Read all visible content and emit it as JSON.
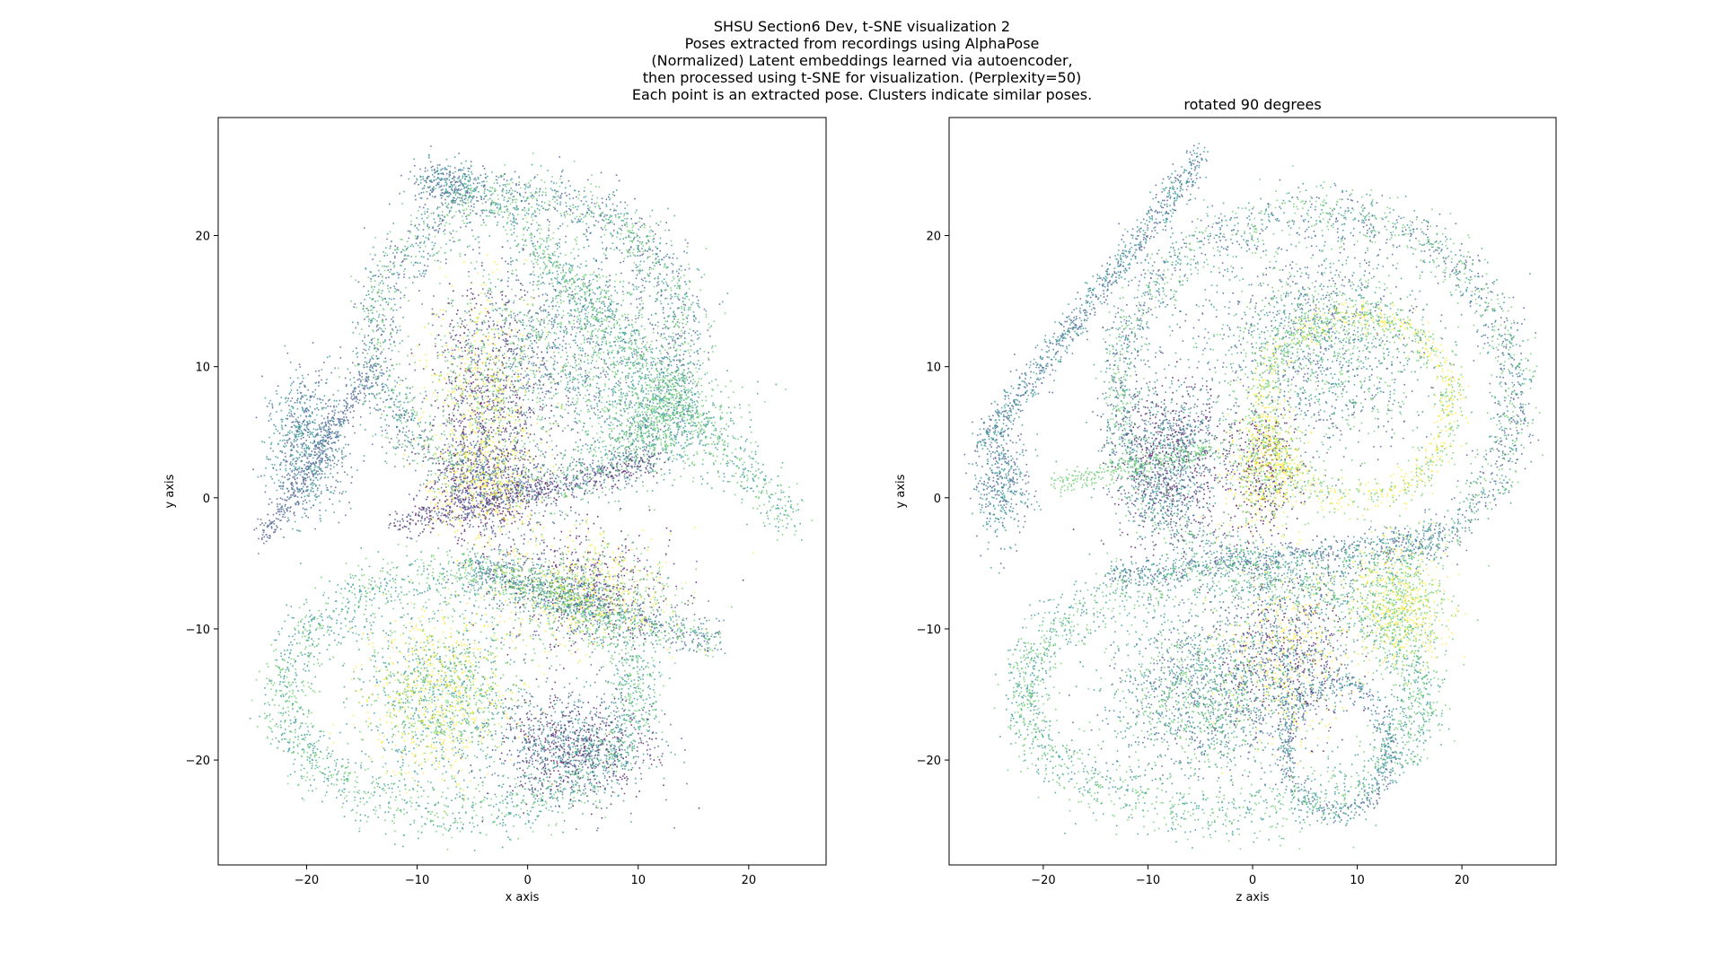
{
  "figure": {
    "suptitle_lines": [
      "SHSU Section6 Dev, t-SNE visualization 2",
      "Poses extracted from recordings using AlphaPose",
      "(Normalized) Latent embeddings learned via autoencoder,",
      "then processed using t-SNE for visualization. (Perplexity=50)",
      "Each point is an extracted pose. Clusters indicate similar poses."
    ]
  },
  "chart_data": [
    {
      "type": "scatter",
      "title": "",
      "xlabel": "x axis",
      "ylabel": "y axis",
      "xlim": [
        -28,
        27
      ],
      "ylim": [
        -28,
        29
      ],
      "xticks": [
        -20,
        -10,
        0,
        10,
        20
      ],
      "yticks": [
        -20,
        -10,
        0,
        10,
        20
      ],
      "grid": false,
      "colormap": "viridis",
      "colormap_stops": [
        "#440154",
        "#3b528b",
        "#21918c",
        "#5ec962",
        "#fde725"
      ],
      "points_description": "dense swirling clusters of several thousand points",
      "clusters": [
        {
          "shape": "ring",
          "cx": 0,
          "cy": 12,
          "rx": 14,
          "ry": 11,
          "width": 3.5,
          "n": 2600,
          "colors": [
            2,
            3,
            1
          ]
        },
        {
          "shape": "blob",
          "cx": 4,
          "cy": 12,
          "rx": 10,
          "ry": 9,
          "n": 1500,
          "colors": [
            2,
            1,
            3
          ]
        },
        {
          "shape": "blob",
          "cx": -4,
          "cy": 8,
          "rx": 6,
          "ry": 9,
          "n": 1400,
          "colors": [
            0,
            1,
            3,
            4
          ]
        },
        {
          "shape": "band",
          "x1": -3,
          "y1": 23,
          "x2": 24,
          "y2": -2,
          "width": 2.5,
          "n": 900,
          "colors": [
            2,
            3
          ]
        },
        {
          "shape": "blob",
          "cx": 12,
          "cy": 6,
          "rx": 7,
          "ry": 5,
          "n": 900,
          "colors": [
            3,
            2
          ]
        },
        {
          "shape": "blob",
          "cx": -20,
          "cy": 4,
          "rx": 4,
          "ry": 6,
          "n": 800,
          "colors": [
            2,
            1
          ]
        },
        {
          "shape": "band",
          "x1": -24,
          "y1": -3,
          "x2": -14,
          "y2": 10,
          "width": 1.5,
          "n": 400,
          "colors": [
            1
          ]
        },
        {
          "shape": "blob",
          "cx": -7,
          "cy": 24,
          "rx": 4,
          "ry": 2,
          "n": 350,
          "colors": [
            1,
            2
          ]
        },
        {
          "shape": "blob",
          "cx": -4,
          "cy": 1,
          "rx": 6,
          "ry": 5,
          "n": 1000,
          "colors": [
            0,
            4,
            1
          ]
        },
        {
          "shape": "blob",
          "cx": 5,
          "cy": -7,
          "rx": 9,
          "ry": 5,
          "n": 1400,
          "colors": [
            4,
            3,
            0,
            1
          ]
        },
        {
          "shape": "ring",
          "cx": -6,
          "cy": -15,
          "rx": 16,
          "ry": 9,
          "width": 3.5,
          "n": 2200,
          "colors": [
            2,
            3
          ]
        },
        {
          "shape": "blob",
          "cx": -8,
          "cy": -15,
          "rx": 8,
          "ry": 7,
          "n": 1600,
          "colors": [
            3,
            2,
            4
          ]
        },
        {
          "shape": "blob",
          "cx": 4,
          "cy": -19,
          "rx": 8,
          "ry": 4.5,
          "n": 1200,
          "colors": [
            1,
            0,
            2
          ]
        },
        {
          "shape": "band",
          "x1": -6,
          "y1": -5,
          "x2": 17,
          "y2": -11,
          "width": 2,
          "n": 900,
          "colors": [
            1,
            2,
            3
          ]
        },
        {
          "shape": "band",
          "x1": -12,
          "y1": -2,
          "x2": 12,
          "y2": 3,
          "width": 1.5,
          "n": 600,
          "colors": [
            0,
            1
          ]
        }
      ]
    },
    {
      "type": "scatter",
      "title": "rotated 90 degrees",
      "xlabel": "z axis",
      "ylabel": "y axis",
      "xlim": [
        -29,
        29
      ],
      "ylim": [
        -28,
        29
      ],
      "xticks": [
        -20,
        -10,
        0,
        10,
        20
      ],
      "yticks": [
        -20,
        -10,
        0,
        10,
        20
      ],
      "grid": false,
      "colormap": "viridis",
      "colormap_stops": [
        "#440154",
        "#3b528b",
        "#21918c",
        "#5ec962",
        "#fde725"
      ],
      "points_description": "dense swirling clusters of several thousand points",
      "clusters": [
        {
          "shape": "ring",
          "cx": 6,
          "cy": 8,
          "rx": 19,
          "ry": 14,
          "width": 3,
          "n": 2600,
          "colors": [
            2,
            1,
            3
          ]
        },
        {
          "shape": "blob",
          "cx": 6,
          "cy": 12,
          "rx": 12,
          "ry": 9,
          "n": 1800,
          "colors": [
            2,
            3,
            1
          ]
        },
        {
          "shape": "band",
          "x1": -26,
          "y1": 4,
          "x2": -5,
          "y2": 26,
          "width": 1.8,
          "n": 900,
          "colors": [
            2,
            1
          ]
        },
        {
          "shape": "blob",
          "cx": -24,
          "cy": 1,
          "rx": 3,
          "ry": 5,
          "n": 400,
          "colors": [
            2,
            1
          ]
        },
        {
          "shape": "blob",
          "cx": -8,
          "cy": 3,
          "rx": 6,
          "ry": 7,
          "n": 1300,
          "colors": [
            0,
            1,
            2
          ]
        },
        {
          "shape": "blob",
          "cx": 1,
          "cy": 2,
          "rx": 4,
          "ry": 5,
          "n": 900,
          "colors": [
            4,
            3,
            0
          ]
        },
        {
          "shape": "ring",
          "cx": 10,
          "cy": 7,
          "rx": 9,
          "ry": 7,
          "width": 2,
          "n": 1100,
          "colors": [
            3,
            4
          ]
        },
        {
          "shape": "band",
          "x1": -19,
          "y1": 1,
          "x2": -3,
          "y2": 4,
          "width": 1.2,
          "n": 300,
          "colors": [
            3
          ]
        },
        {
          "shape": "ring",
          "cx": -3,
          "cy": -15,
          "rx": 19,
          "ry": 9,
          "width": 3.5,
          "n": 2200,
          "colors": [
            2,
            3
          ]
        },
        {
          "shape": "blob",
          "cx": -5,
          "cy": -15,
          "rx": 10,
          "ry": 7,
          "n": 1600,
          "colors": [
            2,
            3,
            1
          ]
        },
        {
          "shape": "blob",
          "cx": 3,
          "cy": -12,
          "rx": 7,
          "ry": 7,
          "n": 1200,
          "colors": [
            1,
            0,
            2,
            4
          ]
        },
        {
          "shape": "ring",
          "cx": 8,
          "cy": -19,
          "rx": 5,
          "ry": 5,
          "width": 1.5,
          "n": 600,
          "colors": [
            1,
            2
          ]
        },
        {
          "shape": "blob",
          "cx": 14,
          "cy": -8,
          "rx": 5,
          "ry": 5,
          "n": 800,
          "colors": [
            3,
            4
          ]
        },
        {
          "shape": "band",
          "x1": -14,
          "y1": -6,
          "x2": 18,
          "y2": -3,
          "width": 1.5,
          "n": 700,
          "colors": [
            1,
            2
          ]
        }
      ]
    }
  ]
}
